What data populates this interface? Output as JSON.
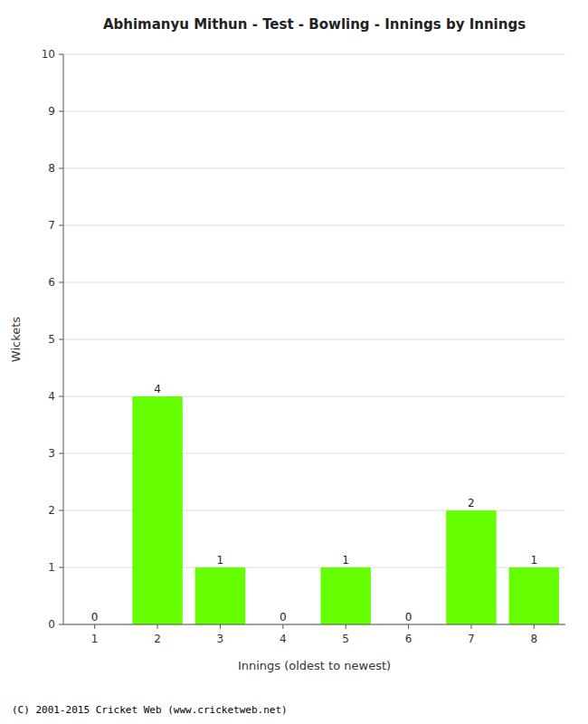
{
  "chart_data": {
    "type": "bar",
    "title": "Abhimanyu Mithun - Test - Bowling - Innings by Innings",
    "x_label": "Innings (oldest to newest)",
    "y_label": "Wickets",
    "categories": [
      1,
      2,
      3,
      4,
      5,
      6,
      7,
      8
    ],
    "values": [
      0,
      4,
      1,
      0,
      1,
      0,
      2,
      1
    ],
    "color": "#66ff00",
    "ylim": [
      0,
      10
    ],
    "yticks": [
      0,
      1,
      2,
      3,
      4,
      5,
      6,
      7,
      8,
      9,
      10
    ],
    "grid": true,
    "data_labels": true,
    "footer": "(C) 2001-2015 Cricket Web (www.cricketweb.net)"
  }
}
